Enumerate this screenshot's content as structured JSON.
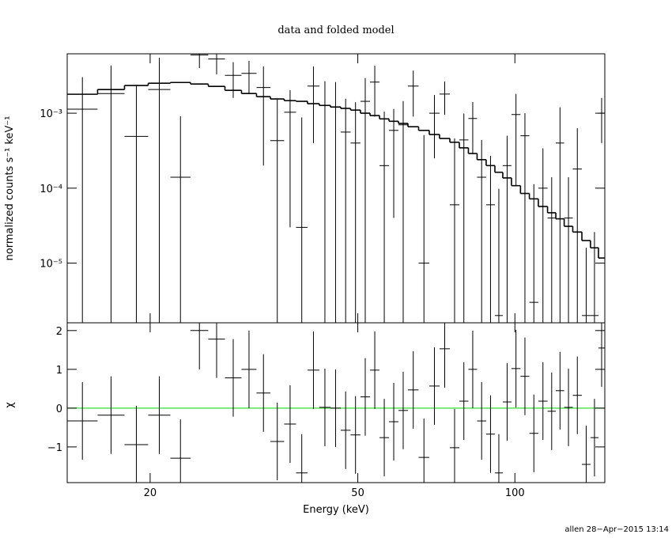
{
  "chart_data": [
    {
      "type": "spectrum",
      "title": "data and folded model",
      "ylabel": "normalized counts s⁻¹ keV⁻¹",
      "xscale": "log",
      "yscale": "log",
      "xlim": [
        13.87,
        148.7
      ],
      "ylim": [
        1.6e-06,
        0.0062
      ],
      "xticks": [
        20,
        50,
        100
      ],
      "xtick_labels": false,
      "yticks": [
        {
          "value": 0.001,
          "label": "10⁻³"
        },
        {
          "value": 0.0001,
          "label": "10⁻⁴"
        },
        {
          "value": 1e-05,
          "label": "10⁻⁵"
        }
      ],
      "bins": [
        13.87,
        15.86,
        17.86,
        19.83,
        21.87,
        23.9,
        25.85,
        27.82,
        29.93,
        31.98,
        34.0,
        36.13,
        38.07,
        40.05,
        42.2,
        44.31,
        46.37,
        48.43,
        50.59,
        52.77,
        55.03,
        57.38,
        59.83,
        62.37,
        65.39,
        68.54,
        71.72,
        75.05,
        78.26,
        81.45,
        84.64,
        88.1,
        91.55,
        94.8,
        98.51,
        102.5,
        106.6,
        110.9,
        115.5,
        119.8,
        124.3,
        129.1,
        134.4,
        139.6,
        144.6,
        148.7
      ],
      "data": {
        "color": "#000000",
        "values": [
          0.00113,
          0.00183,
          0.00049,
          0.00207,
          0.00014,
          0.006,
          0.0053,
          0.0032,
          0.0034,
          0.0022,
          0.00043,
          0.00103,
          3e-05,
          0.0023,
          0.00127,
          0.0012,
          0.00056,
          0.0004,
          0.00144,
          0.0026,
          0.0002,
          0.00059,
          0.0007,
          0.0023,
          1e-05,
          0.001,
          0.0018,
          6e-05,
          0.00044,
          0.00085,
          0.00014,
          6e-05,
          2e-06,
          0.0002,
          0.00096,
          0.0005,
          3e-06,
          0.0001,
          4e-05,
          0.0004,
          4e-05,
          0.00018,
          2e-06,
          2e-06,
          0.001
        ],
        "errors": [
          0.0019,
          0.0025,
          0.0019,
          0.0034,
          0.00077,
          0.002,
          0.002,
          0.0016,
          0.0016,
          0.002,
          0.0011,
          0.001,
          0.00085,
          0.0019,
          0.0014,
          0.0014,
          0.001,
          0.001,
          0.0015,
          0.0017,
          0.00085,
          0.00055,
          0.00075,
          0.0014,
          0.0005,
          0.00075,
          0.00085,
          0.0004,
          0.00055,
          0.00056,
          0.0003,
          0.00021,
          9.6e-05,
          0.0003,
          0.00085,
          0.0005,
          0.00011,
          0.00024,
          0.0001,
          0.0008,
          0.0001,
          0.00045,
          1.4e-05,
          2.4e-05,
          0.0006
        ]
      },
      "model": {
        "color": "#000000",
        "values": [
          0.00179,
          0.00207,
          0.00234,
          0.00251,
          0.00257,
          0.00245,
          0.00228,
          0.00202,
          0.00183,
          0.00166,
          0.00155,
          0.00147,
          0.00144,
          0.00134,
          0.00127,
          0.00121,
          0.00116,
          0.0011,
          0.001,
          0.00093,
          0.00084,
          0.00078,
          0.00073,
          0.00066,
          0.00059,
          0.00052,
          0.00046,
          0.00041,
          0.000345,
          0.00029,
          0.00024,
          0.0002,
          0.000163,
          0.000137,
          0.000108,
          8.5e-05,
          7.2e-05,
          5.7e-05,
          4.7e-05,
          3.9e-05,
          3.1e-05,
          2.6e-05,
          2e-05,
          1.6e-05,
          1.17e-05
        ]
      }
    },
    {
      "type": "residuals",
      "ylabel": "χ",
      "xlabel": "Energy (keV)",
      "xscale": "log",
      "yscale": "linear",
      "xlim": [
        13.87,
        148.7
      ],
      "ylim": [
        -1.92,
        2.2
      ],
      "xticks": [
        20,
        50,
        100
      ],
      "xtick_labels": true,
      "yticks": [
        {
          "value": -1,
          "label": "−1"
        },
        0,
        1,
        2
      ],
      "reference_line": 0,
      "reference_color": "#33dd33",
      "bins": [
        13.87,
        15.86,
        17.86,
        19.83,
        21.87,
        23.9,
        25.85,
        27.82,
        29.93,
        31.98,
        34.0,
        36.13,
        38.07,
        40.05,
        42.2,
        44.31,
        46.37,
        48.43,
        50.59,
        52.77,
        55.03,
        57.38,
        59.83,
        62.37,
        65.39,
        68.54,
        71.72,
        75.05,
        78.26,
        81.45,
        84.64,
        88.1,
        91.55,
        94.8,
        98.51,
        102.5,
        106.6,
        110.9,
        115.5,
        119.8,
        124.3,
        129.1,
        134.4,
        139.6,
        144.6,
        148.7
      ],
      "data": {
        "color": "#000000",
        "error": 1,
        "values": [
          -0.33,
          -0.18,
          -0.94,
          -0.18,
          -1.29,
          2.0,
          1.78,
          0.78,
          1.0,
          0.39,
          -0.86,
          -0.41,
          -1.67,
          0.98,
          0.02,
          0,
          -0.57,
          -0.69,
          0.29,
          0.98,
          -0.76,
          -0.35,
          -0.06,
          0.47,
          -1.27,
          0.57,
          1.53,
          -1.02,
          0.18,
          1.0,
          -0.33,
          -0.67,
          -1.67,
          0.16,
          1.02,
          0.82,
          -0.65,
          0.18,
          -0.08,
          0.45,
          0.02,
          0.33,
          -1.45,
          -0.76,
          1.55
        ]
      }
    }
  ],
  "footer": "allen 28−Apr−2015 13:14"
}
